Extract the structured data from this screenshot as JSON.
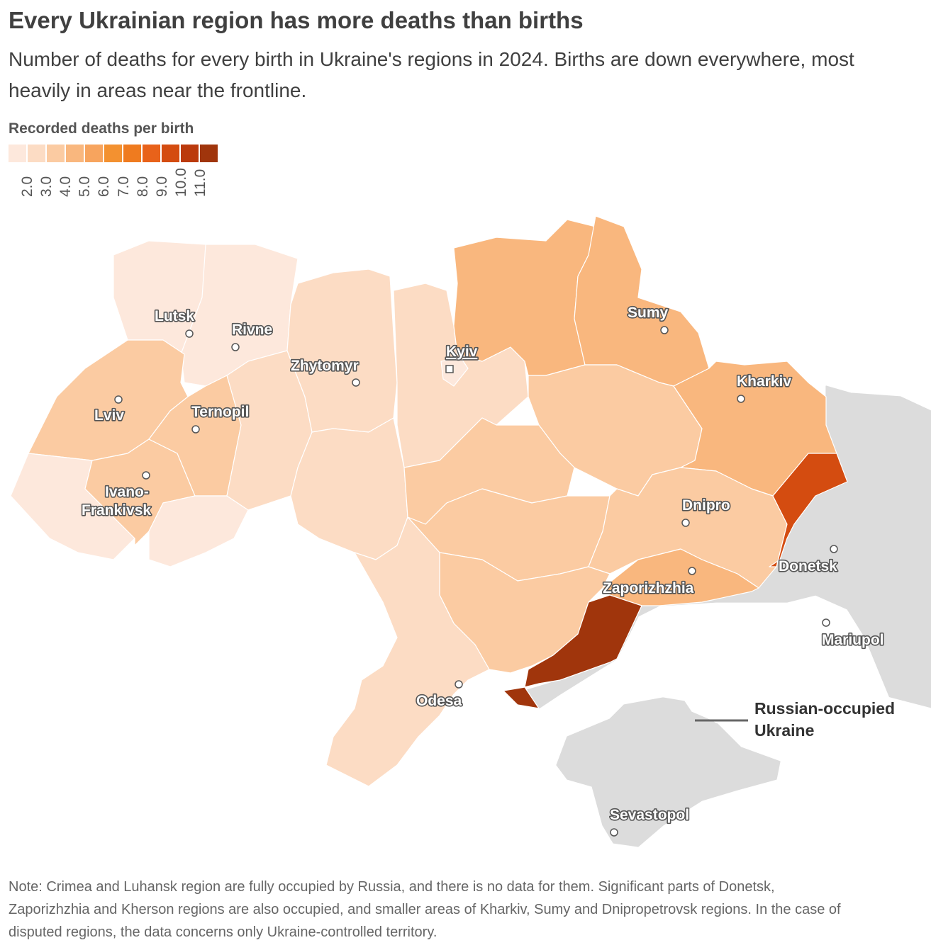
{
  "header": {
    "title": "Every Ukrainian region has more deaths than births",
    "subtitle_line1": "Number of deaths for every birth in Ukraine's regions in 2024. Births are down everywhere, most",
    "subtitle_line2": "heavily in areas near the frontline."
  },
  "legend": {
    "title": "Recorded deaths per birth",
    "ticks": [
      "2.0",
      "3.0",
      "4.0",
      "5.0",
      "6.0",
      "7.0",
      "8.0",
      "9.0",
      "10.0",
      "11.0"
    ],
    "colors": [
      "#fde8dc",
      "#fcdcc4",
      "#fbcba2",
      "#f9b77e",
      "#f7a45e",
      "#f39130",
      "#ef7b1f",
      "#e8621a",
      "#d44c10",
      "#bb3a0c",
      "#a0350c"
    ]
  },
  "map": {
    "occupied_color": "#dcdcdc",
    "occupied_label_line1": "Russian-occupied",
    "occupied_label_line2": "Ukraine",
    "cities": [
      {
        "name": "Lutsk",
        "underline": false
      },
      {
        "name": "Rivne",
        "underline": false
      },
      {
        "name": "Zhytomyr",
        "underline": false
      },
      {
        "name": "Kyiv",
        "underline": true
      },
      {
        "name": "Sumy",
        "underline": false
      },
      {
        "name": "Kharkiv",
        "underline": false
      },
      {
        "name": "Lviv",
        "underline": false
      },
      {
        "name": "Ternopil",
        "underline": false
      },
      {
        "name": "Ivano-",
        "underline": false
      },
      {
        "name": "Frankivsk",
        "underline": false
      },
      {
        "name": "Dnipro",
        "underline": false
      },
      {
        "name": "Donetsk",
        "underline": false
      },
      {
        "name": "Zaporizhzhia",
        "underline": false
      },
      {
        "name": "Mariupol",
        "underline": false
      },
      {
        "name": "Odesa",
        "underline": false
      },
      {
        "name": "Sevastopol",
        "underline": false
      }
    ]
  },
  "note": {
    "line1": "Note: Crimea and Luhansk region are fully occupied by Russia, and there is no data for them. Significant parts of Donetsk,",
    "line2": "Zaporizhzhia and Kherson regions are also occupied, and smaller areas of Kharkiv, Sumy and Dnipropetrovsk regions. In the case of",
    "line3": "disputed regions, the data concerns only Ukraine-controlled territory."
  }
}
